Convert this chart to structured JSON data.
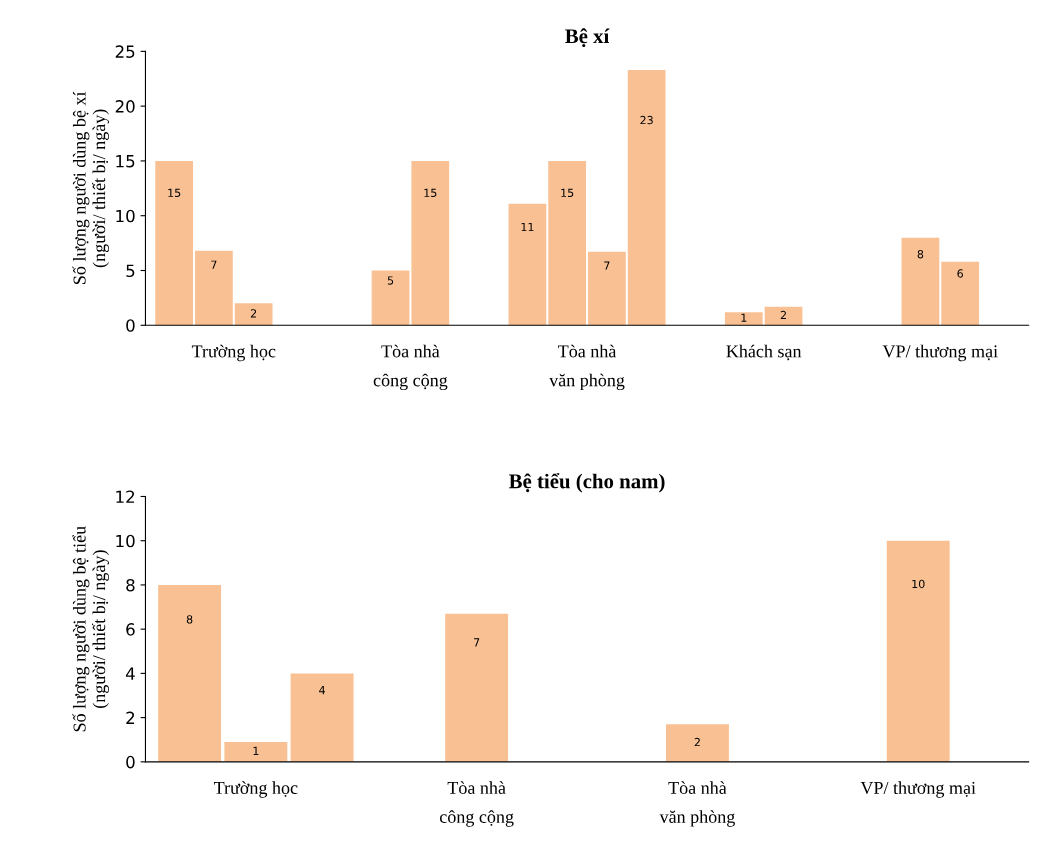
{
  "chart_data": [
    {
      "type": "bar",
      "title": "Bệ xí",
      "ylabel": "Số lượng người dùng bệ xí\n(người/ thiết bị/ ngày)",
      "categories": [
        "Trường học",
        "Tòa nhà\ncông cộng",
        "Tòa nhà\nvăn phòng",
        "Khách sạn",
        "VP/ thương mại"
      ],
      "series": [
        {
          "color": "#f9c193",
          "values": [
            15,
            null,
            11.1,
            null,
            null
          ],
          "value_labels": [
            "15",
            null,
            "11",
            null,
            null
          ]
        },
        {
          "color": "#f9c193",
          "values": [
            6.8,
            5,
            15,
            1.2,
            8
          ],
          "value_labels": [
            "7",
            "5",
            "15",
            "1",
            "8"
          ]
        },
        {
          "color": "#f9c193",
          "values": [
            2,
            15,
            6.7,
            1.7,
            5.8
          ],
          "value_labels": [
            "2",
            "15",
            "7",
            "2",
            "6"
          ]
        },
        {
          "color": "#f9c193",
          "values": [
            null,
            null,
            23.3,
            null,
            null
          ],
          "value_labels": [
            null,
            null,
            "23",
            null,
            null
          ]
        }
      ],
      "ylim": [
        0,
        25
      ],
      "yticks": [
        0,
        5,
        10,
        15,
        20,
        25
      ],
      "grid": false,
      "legend": false
    },
    {
      "type": "bar",
      "title": "Bệ tiểu (cho nam)",
      "ylabel": "Số lượng người dùng bệ tiểu\n(người/ thiết bị/ ngày)",
      "categories": [
        "Trường học",
        "Tòa nhà\ncông cộng",
        "Tòa nhà\nvăn phòng",
        "VP/ thương mại"
      ],
      "series": [
        {
          "color": "#f9c193",
          "values": [
            8,
            null,
            null,
            null
          ],
          "value_labels": [
            "8",
            null,
            null,
            null
          ]
        },
        {
          "color": "#f9c193",
          "values": [
            0.9,
            6.7,
            1.7,
            10
          ],
          "value_labels": [
            "1",
            "7",
            "2",
            "10"
          ]
        },
        {
          "color": "#f9c193",
          "values": [
            4,
            null,
            null,
            null
          ],
          "value_labels": [
            "4",
            null,
            null,
            null
          ]
        }
      ],
      "ylim": [
        0,
        12
      ],
      "yticks": [
        0,
        2,
        4,
        6,
        8,
        10,
        12
      ],
      "grid": false,
      "legend": false
    }
  ]
}
